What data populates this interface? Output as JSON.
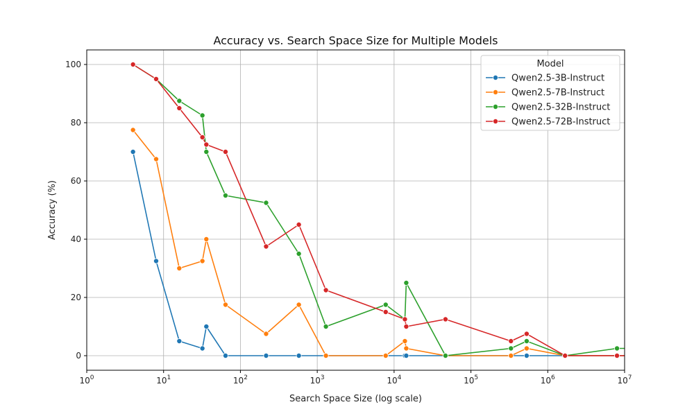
{
  "chart_data": {
    "type": "line",
    "title": "Accuracy vs. Search Space Size for Multiple Models",
    "xlabel": "Search Space Size (log scale)",
    "ylabel": "Accuracy (%)",
    "xscale": "log",
    "xlim": [
      1,
      10000000
    ],
    "ylim": [
      -5,
      105
    ],
    "x_ticks": [
      1,
      10,
      100,
      1000,
      10000,
      100000,
      1000000,
      10000000
    ],
    "x_tick_labels": [
      {
        "base": "10",
        "exp": "0"
      },
      {
        "base": "10",
        "exp": "1"
      },
      {
        "base": "10",
        "exp": "2"
      },
      {
        "base": "10",
        "exp": "3"
      },
      {
        "base": "10",
        "exp": "4"
      },
      {
        "base": "10",
        "exp": "5"
      },
      {
        "base": "10",
        "exp": "6"
      },
      {
        "base": "10",
        "exp": "7"
      }
    ],
    "y_ticks": [
      0,
      20,
      40,
      60,
      80,
      100
    ],
    "y_tick_labels": [
      "0",
      "20",
      "40",
      "60",
      "80",
      "100"
    ],
    "grid": true,
    "legend": {
      "title": "Model",
      "position": "top-right"
    },
    "series": [
      {
        "name": "Qwen2.5-3B-Instruct",
        "color": "#1f77b4",
        "points": [
          [
            4,
            70
          ],
          [
            8,
            32.5
          ],
          [
            16,
            5
          ],
          [
            32,
            2.5
          ],
          [
            36,
            10
          ],
          [
            64,
            0
          ],
          [
            216,
            0
          ],
          [
            576,
            0
          ],
          [
            1296,
            0
          ],
          [
            7776,
            0
          ],
          [
            13824,
            0
          ],
          [
            14400,
            0
          ],
          [
            46656,
            0
          ],
          [
            331776,
            0
          ],
          [
            531441,
            0
          ],
          [
            1679616,
            0
          ],
          [
            7962624,
            0
          ],
          [
            14348907,
            0
          ]
        ]
      },
      {
        "name": "Qwen2.5-7B-Instruct",
        "color": "#ff7f0e",
        "points": [
          [
            4,
            77.5
          ],
          [
            8,
            67.5
          ],
          [
            16,
            30
          ],
          [
            32,
            32.5
          ],
          [
            36,
            40
          ],
          [
            64,
            17.5
          ],
          [
            216,
            7.5
          ],
          [
            576,
            17.5
          ],
          [
            1296,
            0
          ],
          [
            7776,
            0
          ],
          [
            13824,
            5
          ],
          [
            14400,
            2.5
          ],
          [
            46656,
            0
          ],
          [
            331776,
            0
          ],
          [
            531441,
            2.5
          ],
          [
            1679616,
            0
          ],
          [
            7962624,
            0
          ],
          [
            14348907,
            0
          ]
        ]
      },
      {
        "name": "Qwen2.5-32B-Instruct",
        "color": "#2ca02c",
        "points": [
          [
            4,
            100
          ],
          [
            8,
            95
          ],
          [
            16,
            87.5
          ],
          [
            32,
            82.5
          ],
          [
            36,
            70
          ],
          [
            64,
            55
          ],
          [
            216,
            52.5
          ],
          [
            576,
            35
          ],
          [
            1296,
            10
          ],
          [
            7776,
            17.5
          ],
          [
            13824,
            12.5
          ],
          [
            14400,
            25
          ],
          [
            46656,
            0
          ],
          [
            331776,
            2.5
          ],
          [
            531441,
            5
          ],
          [
            1679616,
            0
          ],
          [
            7962624,
            2.5
          ],
          [
            14348907,
            2.5
          ]
        ]
      },
      {
        "name": "Qwen2.5-72B-Instruct",
        "color": "#d62728",
        "points": [
          [
            4,
            100
          ],
          [
            8,
            95
          ],
          [
            16,
            85
          ],
          [
            32,
            75
          ],
          [
            36,
            72.5
          ],
          [
            64,
            70
          ],
          [
            216,
            37.5
          ],
          [
            576,
            45
          ],
          [
            1296,
            22.5
          ],
          [
            7776,
            15
          ],
          [
            13824,
            12.5
          ],
          [
            14400,
            10
          ],
          [
            46656,
            12.5
          ],
          [
            331776,
            5
          ],
          [
            531441,
            7.5
          ],
          [
            1679616,
            0
          ],
          [
            7962624,
            0
          ],
          [
            14348907,
            0
          ]
        ]
      }
    ]
  }
}
